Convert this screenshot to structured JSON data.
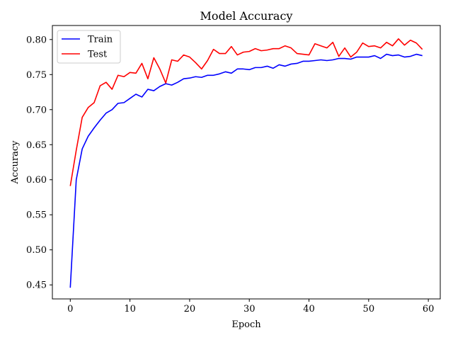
{
  "chart_data": {
    "type": "line",
    "title": "Model Accuracy",
    "xlabel": "Epoch",
    "ylabel": "Accuracy",
    "xlim": [
      -3,
      62
    ],
    "ylim": [
      0.43,
      0.82
    ],
    "xticks": [
      0,
      10,
      20,
      30,
      40,
      50,
      60
    ],
    "yticks": [
      0.45,
      0.5,
      0.55,
      0.6,
      0.65,
      0.7,
      0.75,
      0.8
    ],
    "ytick_labels": [
      "0.45",
      "0.50",
      "0.55",
      "0.60",
      "0.65",
      "0.70",
      "0.75",
      "0.80"
    ],
    "grid": false,
    "legend_position": "top-left",
    "series": [
      {
        "name": "Train",
        "color": "#0000ff",
        "x": [
          0,
          1,
          2,
          3,
          4,
          5,
          6,
          7,
          8,
          9,
          10,
          11,
          12,
          13,
          14,
          15,
          16,
          17,
          18,
          19,
          20,
          21,
          22,
          23,
          24,
          25,
          26,
          27,
          28,
          29,
          30,
          31,
          32,
          33,
          34,
          35,
          36,
          37,
          38,
          39,
          40,
          41,
          42,
          43,
          44,
          45,
          46,
          47,
          48,
          49,
          50,
          51,
          52,
          53,
          54,
          55,
          56,
          57,
          58,
          59
        ],
        "values": [
          0.446,
          0.6,
          0.644,
          0.662,
          0.674,
          0.685,
          0.695,
          0.7,
          0.709,
          0.71,
          0.716,
          0.722,
          0.718,
          0.729,
          0.727,
          0.733,
          0.737,
          0.735,
          0.739,
          0.744,
          0.745,
          0.747,
          0.746,
          0.749,
          0.749,
          0.751,
          0.754,
          0.752,
          0.758,
          0.758,
          0.757,
          0.76,
          0.76,
          0.762,
          0.759,
          0.764,
          0.762,
          0.765,
          0.766,
          0.769,
          0.769,
          0.77,
          0.771,
          0.77,
          0.771,
          0.773,
          0.773,
          0.772,
          0.775,
          0.775,
          0.775,
          0.777,
          0.773,
          0.779,
          0.777,
          0.778,
          0.775,
          0.776,
          0.779,
          0.777
        ]
      },
      {
        "name": "Test",
        "color": "#ff0000",
        "x": [
          0,
          1,
          2,
          3,
          4,
          5,
          6,
          7,
          8,
          9,
          10,
          11,
          12,
          13,
          14,
          15,
          16,
          17,
          18,
          19,
          20,
          21,
          22,
          23,
          24,
          25,
          26,
          27,
          28,
          29,
          30,
          31,
          32,
          33,
          34,
          35,
          36,
          37,
          38,
          39,
          40,
          41,
          42,
          43,
          44,
          45,
          46,
          47,
          48,
          49,
          50,
          51,
          52,
          53,
          54,
          55,
          56,
          57,
          58,
          59
        ],
        "values": [
          0.591,
          0.642,
          0.689,
          0.703,
          0.71,
          0.734,
          0.739,
          0.729,
          0.749,
          0.747,
          0.753,
          0.752,
          0.766,
          0.744,
          0.774,
          0.758,
          0.738,
          0.771,
          0.769,
          0.778,
          0.775,
          0.767,
          0.758,
          0.77,
          0.786,
          0.78,
          0.78,
          0.79,
          0.778,
          0.782,
          0.783,
          0.787,
          0.784,
          0.785,
          0.787,
          0.787,
          0.791,
          0.788,
          0.78,
          0.779,
          0.778,
          0.794,
          0.791,
          0.788,
          0.796,
          0.776,
          0.788,
          0.775,
          0.782,
          0.795,
          0.79,
          0.791,
          0.788,
          0.796,
          0.791,
          0.801,
          0.792,
          0.799,
          0.795,
          0.786
        ]
      }
    ]
  }
}
